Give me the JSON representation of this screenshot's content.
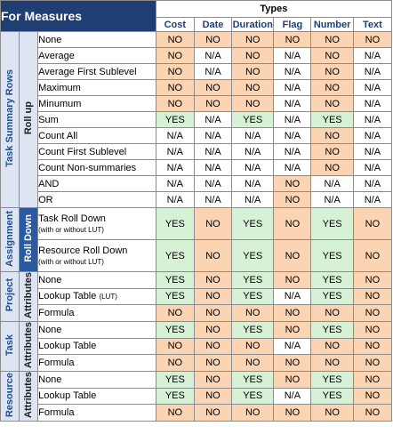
{
  "title": "For Measures",
  "types_header": "Types",
  "columns": [
    "Cost",
    "Date",
    "Duration",
    "Flag",
    "Number",
    "Text"
  ],
  "groups": [
    {
      "label": "Task Summary Rows",
      "subgroups": [
        {
          "label": "Roll up",
          "style": "light",
          "rows": [
            {
              "label": "None",
              "values": [
                "NO",
                "NO",
                "NO",
                "NO",
                "NO",
                "NO"
              ]
            },
            {
              "label": "Average",
              "values": [
                "NO",
                "N/A",
                "NO",
                "N/A",
                "NO",
                "N/A"
              ]
            },
            {
              "label": "Average First Sublevel",
              "values": [
                "NO",
                "N/A",
                "NO",
                "N/A",
                "NO",
                "N/A"
              ]
            },
            {
              "label": "Maximum",
              "values": [
                "NO",
                "NO",
                "NO",
                "N/A",
                "NO",
                "N/A"
              ]
            },
            {
              "label": "Minumum",
              "values": [
                "NO",
                "NO",
                "NO",
                "N/A",
                "NO",
                "N/A"
              ]
            },
            {
              "label": "Sum",
              "values": [
                "YES",
                "N/A",
                "YES",
                "N/A",
                "YES",
                "N/A"
              ]
            },
            {
              "label": "Count All",
              "values": [
                "N/A",
                "N/A",
                "N/A",
                "N/A",
                "NO",
                "N/A"
              ]
            },
            {
              "label": "Count First Sublevel",
              "values": [
                "N/A",
                "N/A",
                "N/A",
                "N/A",
                "NO",
                "N/A"
              ]
            },
            {
              "label": "Count Non-summaries",
              "values": [
                "N/A",
                "N/A",
                "N/A",
                "N/A",
                "NO",
                "N/A"
              ]
            },
            {
              "label": "AND",
              "values": [
                "N/A",
                "N/A",
                "N/A",
                "NO",
                "N/A",
                "N/A"
              ]
            },
            {
              "label": "OR",
              "values": [
                "N/A",
                "N/A",
                "N/A",
                "NO",
                "N/A",
                "N/A"
              ]
            }
          ]
        }
      ]
    },
    {
      "label": "Assignment",
      "subgroups": [
        {
          "label": "Roll Down",
          "style": "dark",
          "rows": [
            {
              "label": "Task Roll Down",
              "note": "(with or without LUT)",
              "tall": true,
              "values": [
                "YES",
                "NO",
                "YES",
                "NO",
                "YES",
                "NO"
              ]
            },
            {
              "label": "Resource Roll Down",
              "note": "(with or without LUT)",
              "tall": true,
              "values": [
                "YES",
                "NO",
                "YES",
                "NO",
                "YES",
                "NO"
              ]
            }
          ]
        }
      ]
    },
    {
      "label": "Project",
      "subgroups": [
        {
          "label": "Attributes",
          "style": "light",
          "rows": [
            {
              "label": "None",
              "values": [
                "YES",
                "NO",
                "YES",
                "NO",
                "YES",
                "NO"
              ]
            },
            {
              "label": "Lookup Table",
              "note": "(LUT)",
              "values": [
                "YES",
                "NO",
                "YES",
                "N/A",
                "YES",
                "NO"
              ]
            },
            {
              "label": "Formula",
              "values": [
                "NO",
                "NO",
                "NO",
                "NO",
                "NO",
                "NO"
              ]
            }
          ]
        }
      ]
    },
    {
      "label": "Task",
      "subgroups": [
        {
          "label": "Attributes",
          "style": "light",
          "rows": [
            {
              "label": "None",
              "values": [
                "YES",
                "NO",
                "YES",
                "NO",
                "YES",
                "NO"
              ]
            },
            {
              "label": "Lookup Table",
              "values": [
                "NO",
                "NO",
                "NO",
                "N/A",
                "NO",
                "NO"
              ]
            },
            {
              "label": "Formula",
              "values": [
                "NO",
                "NO",
                "NO",
                "NO",
                "NO",
                "NO"
              ]
            }
          ]
        }
      ]
    },
    {
      "label": "Resource",
      "subgroups": [
        {
          "label": "Attributes",
          "style": "light",
          "rows": [
            {
              "label": "None",
              "values": [
                "YES",
                "NO",
                "YES",
                "NO",
                "YES",
                "NO"
              ]
            },
            {
              "label": "Lookup Table",
              "values": [
                "YES",
                "NO",
                "YES",
                "N/A",
                "YES",
                "NO"
              ]
            },
            {
              "label": "Formula",
              "values": [
                "NO",
                "NO",
                "NO",
                "NO",
                "NO",
                "NO"
              ]
            }
          ]
        }
      ]
    }
  ],
  "colors": {
    "title_bg": "#1f3f74",
    "no_bg": "#fbd4b4",
    "yes_bg": "#d6f1d6",
    "na_bg": "#ffffff",
    "group_bg": "#dde5f2",
    "rolldown_bg": "#2c5aa0"
  }
}
